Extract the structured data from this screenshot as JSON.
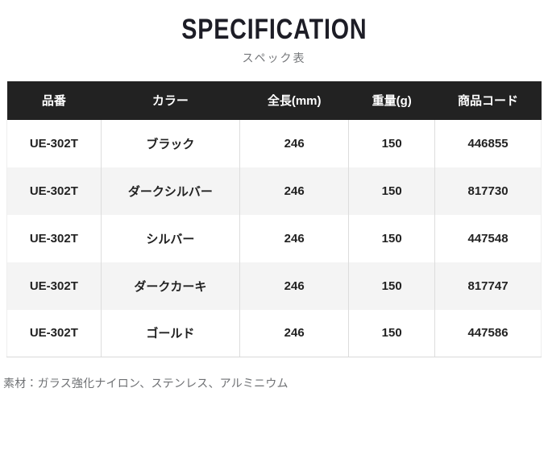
{
  "header": {
    "title": "SPECIFICATION",
    "subtitle": "スペック表"
  },
  "table": {
    "columns": [
      "品番",
      "カラー",
      "全長(mm)",
      "重量(g)",
      "商品コード"
    ],
    "rows": [
      [
        "UE-302T",
        "ブラック",
        "246",
        "150",
        "446855"
      ],
      [
        "UE-302T",
        "ダークシルバー",
        "246",
        "150",
        "817730"
      ],
      [
        "UE-302T",
        "シルバー",
        "246",
        "150",
        "447548"
      ],
      [
        "UE-302T",
        "ダークカーキ",
        "246",
        "150",
        "817747"
      ],
      [
        "UE-302T",
        "ゴールド",
        "246",
        "150",
        "447586"
      ]
    ]
  },
  "footer": {
    "material_note": "素材：ガラス強化ナイロン、ステンレス、アルミニウム"
  },
  "colors": {
    "header_bg": "#222222",
    "header_text": "#ffffff",
    "row_alt_bg": "#f4f4f4",
    "border": "#dddddd",
    "body_text": "#222222",
    "muted_text": "#76787b"
  }
}
